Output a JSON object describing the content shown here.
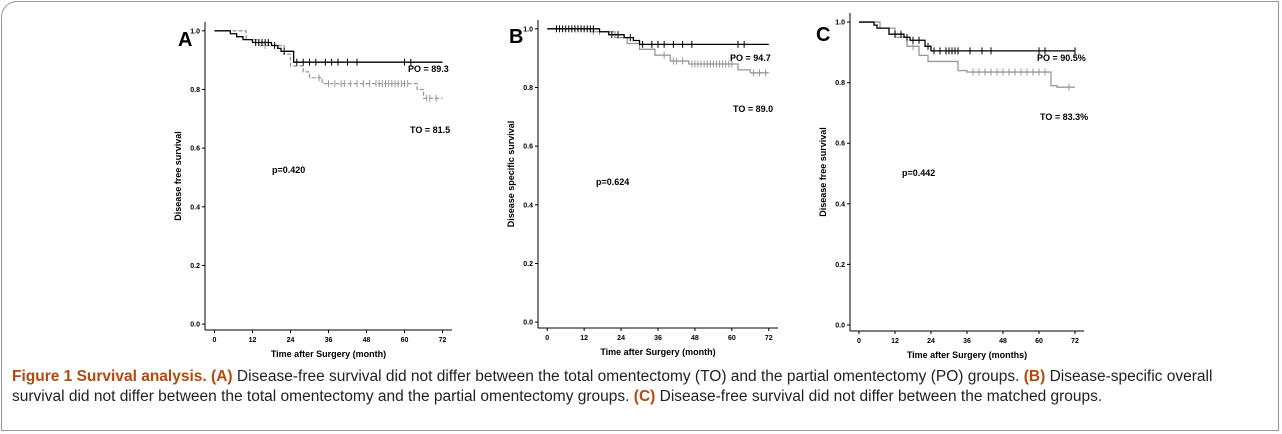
{
  "chart_data": [
    {
      "type": "line",
      "label": "A",
      "ylabel": "Disease free survival",
      "xlabel": "Time after Surgery (month)",
      "xlim": [
        -3,
        75
      ],
      "ylim": [
        -0.02,
        1.03
      ],
      "xticks": [
        0,
        12,
        24,
        36,
        48,
        60,
        72
      ],
      "yticks": [
        {
          "value": 0,
          "label": "0.0"
        },
        0.2,
        0.4,
        0.6,
        0.8,
        {
          "value": 1,
          "label": "1.0"
        }
      ],
      "series": [
        {
          "name": "PO",
          "color": "#000000",
          "line_style": "solid",
          "x": [
            0,
            5,
            7,
            9,
            12,
            18,
            20,
            21,
            25,
            72
          ],
          "values": [
            1.0,
            0.99,
            0.98,
            0.97,
            0.96,
            0.95,
            0.94,
            0.93,
            0.893,
            0.893
          ],
          "censored": [
            13,
            14,
            15,
            16,
            17,
            19,
            22,
            26,
            28,
            30,
            32,
            35,
            37,
            39,
            42,
            45,
            60,
            62
          ]
        },
        {
          "name": "TO",
          "color": "#999999",
          "line_style": "dashed",
          "x": [
            0,
            10,
            14,
            22,
            24,
            28,
            30,
            34,
            64,
            66,
            72
          ],
          "values": [
            1.0,
            0.97,
            0.95,
            0.92,
            0.88,
            0.86,
            0.84,
            0.82,
            0.8,
            0.77,
            0.77
          ],
          "censored": [
            16,
            33,
            36,
            38,
            40,
            41,
            43,
            45,
            47,
            49,
            51,
            52,
            53,
            54,
            55,
            56,
            57,
            58,
            59,
            60,
            61,
            67,
            68,
            70
          ]
        }
      ],
      "annotations": [
        "PO = 89.3",
        "TO = 81.5",
        "p=0.420"
      ]
    },
    {
      "type": "line",
      "label": "B",
      "ylabel": "Disease specific survival",
      "xlabel": "Time after Surgery (month)",
      "xlim": [
        -3,
        75
      ],
      "ylim": [
        -0.02,
        1.03
      ],
      "xticks": [
        0,
        12,
        24,
        36,
        48,
        60,
        72
      ],
      "yticks": [
        {
          "value": 0,
          "label": "0.0"
        },
        0.2,
        0.4,
        0.6,
        0.8,
        {
          "value": 1,
          "label": "1.0"
        }
      ],
      "series": [
        {
          "name": "PO",
          "color": "#000000",
          "line_style": "solid",
          "x": [
            0,
            17,
            20,
            25,
            28,
            30,
            72
          ],
          "values": [
            1.0,
            0.99,
            0.98,
            0.97,
            0.96,
            0.947,
            0.947
          ],
          "censored": [
            3,
            4,
            5,
            6,
            7,
            8,
            9,
            10,
            11,
            12,
            13,
            14,
            15,
            21,
            23,
            27,
            31,
            34,
            36,
            38,
            41,
            44,
            47,
            62,
            64
          ]
        },
        {
          "name": "TO",
          "color": "#999999",
          "line_style": "solid",
          "x": [
            0,
            14,
            22,
            26,
            30,
            35,
            40,
            46,
            62,
            66,
            72
          ],
          "values": [
            1.0,
            0.99,
            0.97,
            0.95,
            0.93,
            0.91,
            0.89,
            0.88,
            0.86,
            0.85,
            0.85
          ],
          "censored": [
            15,
            17,
            38,
            41,
            42,
            44,
            47,
            48,
            49,
            50,
            51,
            52,
            53,
            54,
            55,
            56,
            57,
            58,
            59,
            60,
            67,
            69,
            71
          ]
        }
      ],
      "annotations": [
        "PO = 94.7",
        "TO = 89.0",
        "p=0.624"
      ]
    },
    {
      "type": "line",
      "label": "C",
      "ylabel": "Disease free survival",
      "xlabel": "Time after Surgery (months)",
      "xlim": [
        -3,
        75
      ],
      "ylim": [
        -0.02,
        1.03
      ],
      "xticks": [
        0,
        12,
        24,
        36,
        48,
        60,
        72
      ],
      "yticks": [
        {
          "value": 0,
          "label": "0.0"
        },
        0.2,
        0.4,
        0.6,
        0.8,
        {
          "value": 1,
          "label": "1.0"
        }
      ],
      "series": [
        {
          "name": "PO",
          "color": "#000000",
          "line_style": "solid",
          "x": [
            0,
            5,
            6,
            10,
            15,
            17,
            22,
            24,
            72
          ],
          "values": [
            1.0,
            0.99,
            0.98,
            0.96,
            0.95,
            0.94,
            0.92,
            0.905,
            0.905
          ],
          "censored": [
            12,
            14,
            16,
            18,
            20,
            23,
            25,
            27,
            29,
            30,
            31,
            32,
            33,
            37,
            41,
            44,
            60,
            62,
            72
          ]
        },
        {
          "name": "TO",
          "color": "#999999",
          "line_style": "solid",
          "x": [
            0,
            7,
            12,
            16,
            20,
            23,
            33,
            36,
            64,
            66,
            72
          ],
          "values": [
            1.0,
            0.98,
            0.95,
            0.92,
            0.89,
            0.87,
            0.84,
            0.835,
            0.79,
            0.785,
            0.785
          ],
          "censored": [
            18,
            38,
            40,
            42,
            44,
            46,
            48,
            50,
            52,
            54,
            56,
            58,
            60,
            62,
            70
          ]
        }
      ],
      "annotations": [
        "PO = 90.5%",
        "TO = 83.3%",
        "p=0.442"
      ]
    }
  ],
  "caption": {
    "title": "Figure 1 Survival analysis.",
    "parts": [
      {
        "label": "(A)",
        "text": "Disease-free survival did not differ between the total omentectomy (TO) and the partial omentectomy (PO) groups."
      },
      {
        "label": "(B)",
        "text": "Disease-specific overall survival did not differ between the total omentectomy and the partial omentectomy groups."
      },
      {
        "label": "(C)",
        "text": "Disease-free survival did not differ between the matched groups."
      }
    ]
  }
}
